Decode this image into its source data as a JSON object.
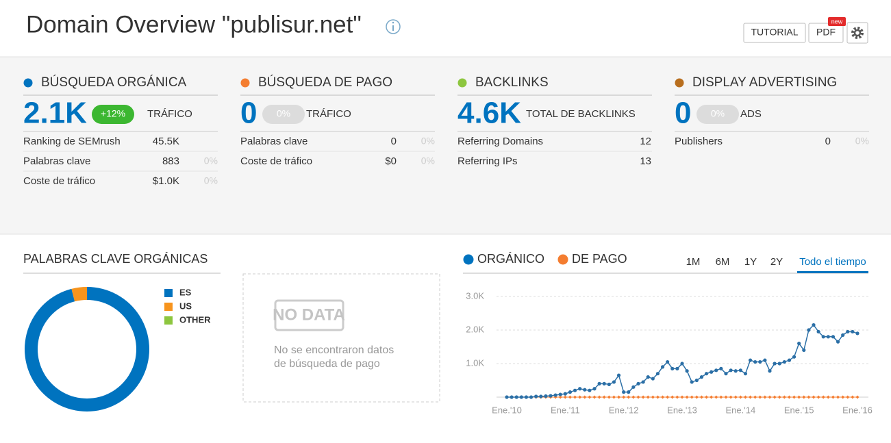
{
  "header": {
    "title": "Domain Overview \"publisur.net\"",
    "buttons": [
      "TUTORIAL",
      "PDF"
    ],
    "badge": "new"
  },
  "panels": [
    {
      "title": "BÚSQUEDA ORGÁNICA",
      "color": "#0073bf",
      "value": "2.1K",
      "change": "+12%",
      "change_color": "#3cb731",
      "label": "TRÁFICO",
      "rows": [
        {
          "label": "Ranking de SEMrush",
          "value": "45.5K"
        },
        {
          "label": "Palabras clave",
          "value": "883",
          "pct": "0%"
        },
        {
          "label": "Coste de tráfico",
          "value": "$1.0K",
          "pct": "0%"
        }
      ]
    },
    {
      "title": "BÚSQUEDA DE PAGO",
      "color": "#f47d30",
      "value": "0",
      "change": "0%",
      "change_color": "#dcdcdc",
      "label": "TRÁFICO",
      "rows": [
        {
          "label": "Palabras clave",
          "value": "0",
          "pct": "0%"
        },
        {
          "label": "Coste de tráfico",
          "value": "$0",
          "pct": "0%"
        }
      ]
    },
    {
      "title": "BACKLINKS",
      "color": "#8dc63f",
      "value": "4.6K",
      "label": "TOTAL DE BACKLINKS",
      "rows": [
        {
          "label": "Referring Domains",
          "value": "12"
        },
        {
          "label": "Referring IPs",
          "value": "13"
        }
      ]
    },
    {
      "title": "DISPLAY ADVERTISING",
      "color": "#b86e1e",
      "value": "0",
      "change": "0%",
      "change_color": "#dcdcdc",
      "label": "ADS",
      "rows": [
        {
          "label": "Publishers",
          "value": "0",
          "pct": "0%"
        }
      ]
    }
  ],
  "keywords_title": "PALABRAS CLAVE ORGÁNICAS",
  "no_data": {
    "badge": "NO DATA",
    "lines": [
      "No se encontraron datos",
      "de búsqueda de pago"
    ]
  },
  "time_tabs": {
    "items": [
      "1M",
      "6M",
      "1Y",
      "2Y",
      "Todo el tiempo"
    ],
    "active": 4
  },
  "chart_data": [
    {
      "type": "pie",
      "categories": [
        "ES",
        "US",
        "OTHER"
      ],
      "values": [
        96,
        4,
        0
      ],
      "colors": [
        "#0073bf",
        "#f7941d",
        "#8dc63f"
      ]
    },
    {
      "type": "line",
      "categories": [
        "Ene.'10",
        null,
        null,
        null,
        null,
        null,
        null,
        null,
        null,
        null,
        null,
        null,
        "Ene.'11",
        null,
        null,
        null,
        null,
        null,
        null,
        null,
        null,
        null,
        null,
        null,
        "Ene.'12",
        null,
        null,
        null,
        null,
        null,
        null,
        null,
        null,
        null,
        null,
        null,
        "Ene.'13",
        null,
        null,
        null,
        null,
        null,
        null,
        null,
        null,
        null,
        null,
        null,
        "Ene.'14",
        null,
        null,
        null,
        null,
        null,
        null,
        null,
        null,
        null,
        null,
        null,
        "Ene.'15",
        null,
        null,
        null,
        null,
        null,
        null,
        null,
        null,
        null,
        null,
        null,
        "Ene.'16"
      ],
      "series": [
        {
          "name": "ORGÁNICO",
          "color": "#2b6fa6",
          "values": [
            0,
            0,
            0,
            0,
            0,
            0,
            20,
            20,
            30,
            40,
            60,
            80,
            100,
            150,
            200,
            250,
            220,
            200,
            250,
            400,
            400,
            380,
            450,
            650,
            150,
            150,
            300,
            400,
            450,
            600,
            550,
            700,
            900,
            1050,
            850,
            850,
            1000,
            780,
            450,
            500,
            600,
            700,
            750,
            800,
            850,
            700,
            800,
            780,
            800,
            700,
            1100,
            1050,
            1050,
            1100,
            780,
            1000,
            1000,
            1050,
            1100,
            1200,
            1600,
            1400,
            2000,
            2150,
            1950,
            1800,
            1800,
            1800,
            1650,
            1850,
            1950,
            1950,
            1900
          ]
        },
        {
          "name": "DE PAGO",
          "color": "#f47d30",
          "values": [
            0,
            0,
            0,
            0,
            0,
            0,
            0,
            0,
            0,
            0,
            0,
            0,
            0,
            0,
            0,
            0,
            0,
            0,
            0,
            0,
            0,
            0,
            0,
            0,
            0,
            0,
            0,
            0,
            0,
            0,
            0,
            0,
            0,
            0,
            0,
            0,
            0,
            0,
            0,
            0,
            0,
            0,
            0,
            0,
            0,
            0,
            0,
            0,
            0,
            0,
            0,
            0,
            0,
            0,
            0,
            0,
            0,
            0,
            0,
            0,
            0,
            0,
            0,
            0,
            0,
            0,
            0,
            0,
            0,
            0,
            0,
            0,
            0
          ]
        }
      ],
      "ylim": [
        0,
        3000
      ],
      "yticks": [
        {
          "value": 1000,
          "label": "1.0K"
        },
        {
          "value": 2000,
          "label": "2.0K"
        },
        {
          "value": 3000,
          "label": "3.0K"
        }
      ],
      "grid": true
    }
  ]
}
